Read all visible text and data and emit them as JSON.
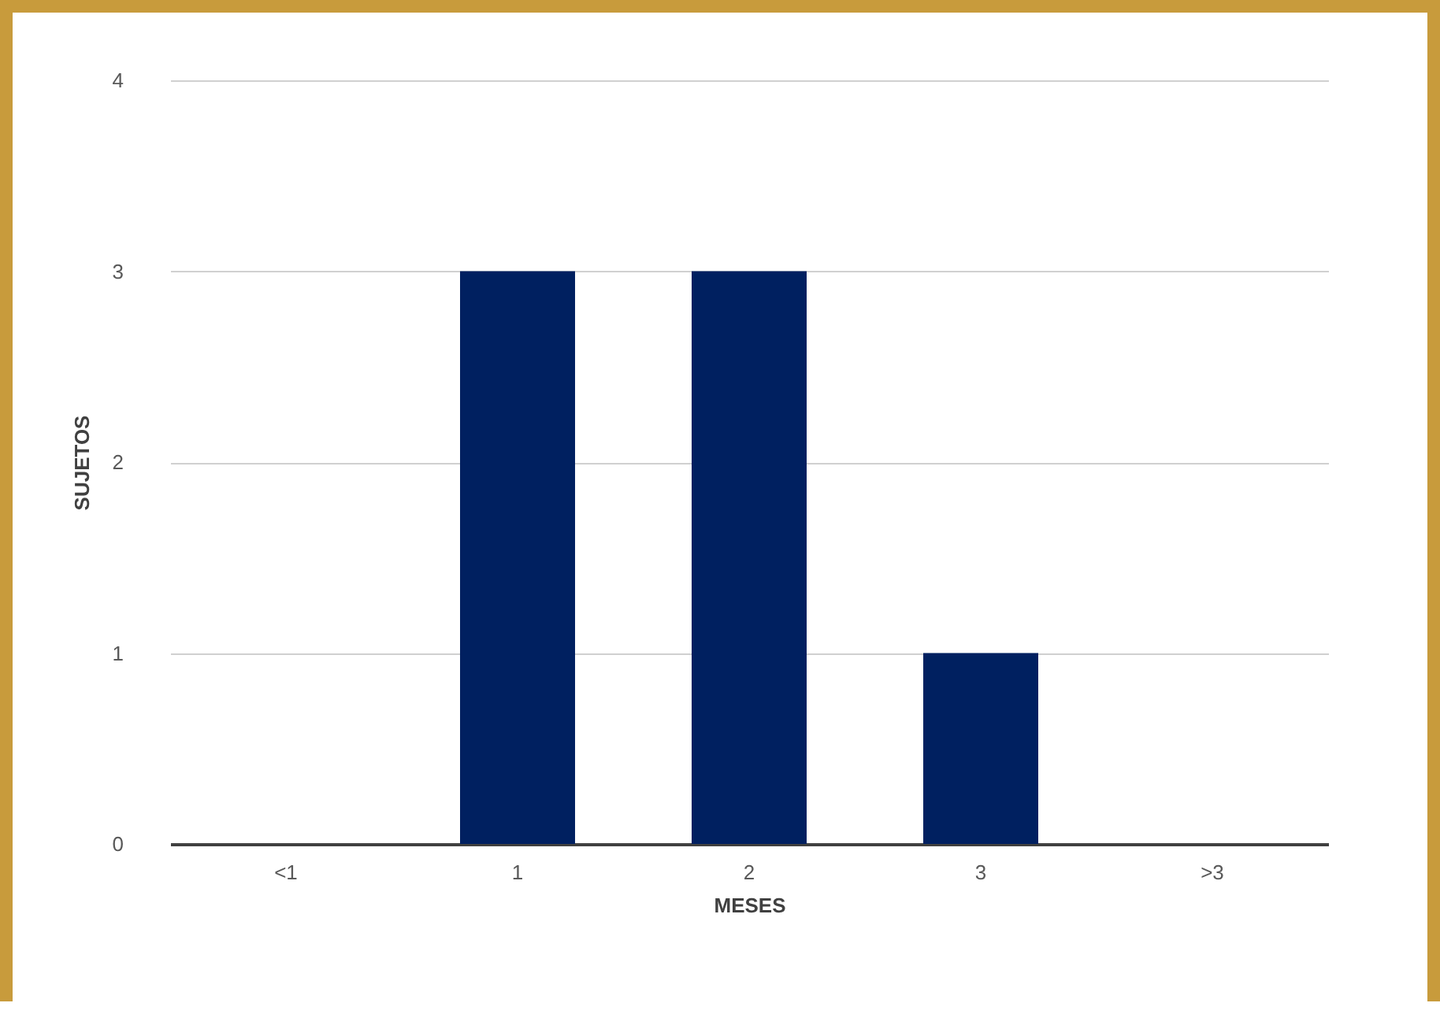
{
  "chart_data": {
    "type": "bar",
    "xlabel": "MESES",
    "ylabel": "SUJETOS",
    "categories": [
      "<1",
      "1",
      "2",
      "3",
      ">3"
    ],
    "values": [
      0,
      3,
      3,
      1,
      0
    ],
    "color": "#002060",
    "ylim": [
      0,
      4
    ],
    "yticks": [
      0,
      1,
      2,
      3,
      4
    ],
    "grid": "y"
  }
}
